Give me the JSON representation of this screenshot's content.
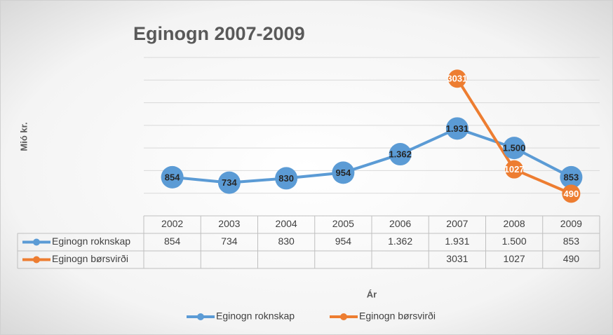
{
  "chart_data": {
    "type": "line",
    "title": "Eginogn 2007-2009",
    "y_label": "Mió kr.",
    "x_label": "Ár",
    "categories": [
      "2002",
      "2003",
      "2004",
      "2005",
      "2006",
      "2007",
      "2008",
      "2009"
    ],
    "series": [
      {
        "name": "Eginogn roknskap",
        "color": "#5b9bd5",
        "values": [
          854,
          734,
          830,
          954,
          1362,
          1931,
          1500,
          853
        ],
        "value_labels": [
          "854",
          "734",
          "830",
          "954",
          "1.362",
          "1.931",
          "1.500",
          "853"
        ]
      },
      {
        "name": "Eginogn børsvirði",
        "color": "#ed7d31",
        "values": [
          null,
          null,
          null,
          null,
          null,
          3031,
          1027,
          490
        ]
      }
    ],
    "ylim": [
      0,
      3500
    ],
    "yticks": [
      0,
      500,
      1000,
      1500,
      2000,
      2500,
      3000,
      3500
    ],
    "grid": true,
    "legend": "bottom"
  }
}
